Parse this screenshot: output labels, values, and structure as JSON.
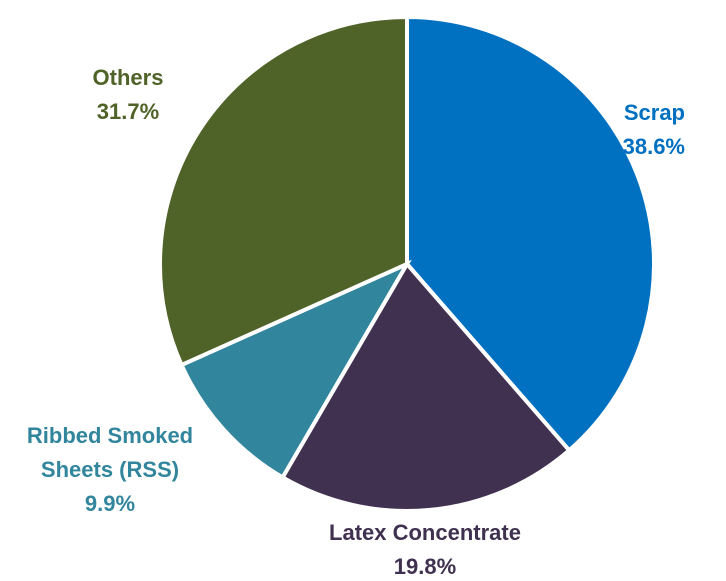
{
  "chart_data": {
    "type": "pie",
    "title": "",
    "start_angle_deg": 0,
    "direction": "clockwise",
    "slices": [
      {
        "name": "Scrap",
        "value": 38.6,
        "label_lines": [
          "Scrap"
        ],
        "value_label": "38.6%",
        "color": "#0070C0"
      },
      {
        "name": "Latex Concentrate",
        "value": 19.8,
        "label_lines": [
          "Latex Concentrate"
        ],
        "value_label": "19.8%",
        "color": "#403151"
      },
      {
        "name": "Ribbed Smoked Sheets (RSS)",
        "value": 9.9,
        "label_lines": [
          "Ribbed Smoked",
          "Sheets (RSS)"
        ],
        "value_label": "9.9%",
        "color": "#31859C"
      },
      {
        "name": "Others",
        "value": 31.7,
        "label_lines": [
          "Others"
        ],
        "value_label": "31.7%",
        "color": "#4F6228"
      }
    ]
  }
}
